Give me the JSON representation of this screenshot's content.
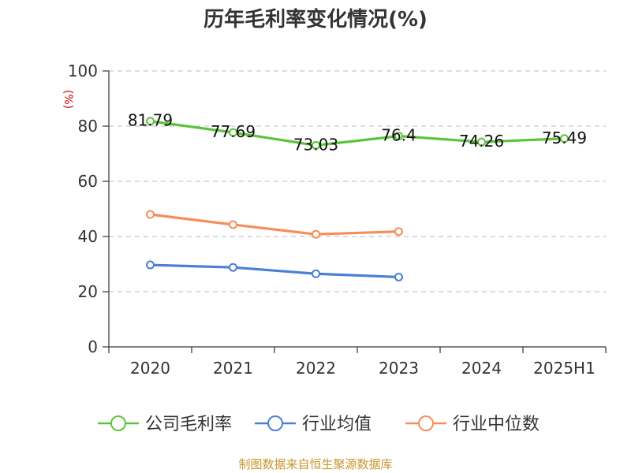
{
  "chart_data": {
    "type": "line",
    "title": "历年毛利率变化情况(%)",
    "ylabel": "(%)",
    "categories": [
      "2020",
      "2021",
      "2022",
      "2023",
      "2024",
      "2025H1"
    ],
    "yticks": [
      "0",
      "20",
      "40",
      "60",
      "80",
      "100"
    ],
    "ylim": [
      0,
      100
    ],
    "grid": true,
    "legend_position": "bottom",
    "series": [
      {
        "name": "公司毛利率",
        "color": "#5cc43b",
        "values": [
          81.79,
          77.69,
          73.03,
          76.4,
          74.26,
          75.49
        ],
        "labels": [
          "81.79",
          "77.69",
          "73.03",
          "76.4",
          "74.26",
          "75.49"
        ]
      },
      {
        "name": "行业均值",
        "color": "#4a7fd6",
        "values": [
          29.7,
          28.8,
          26.5,
          25.3,
          null,
          null
        ]
      },
      {
        "name": "行业中位数",
        "color": "#f68d5a",
        "values": [
          48.0,
          44.3,
          40.8,
          41.8,
          null,
          null
        ]
      }
    ]
  },
  "footer": {
    "source": "制图数据来自恒生聚源数据库"
  }
}
